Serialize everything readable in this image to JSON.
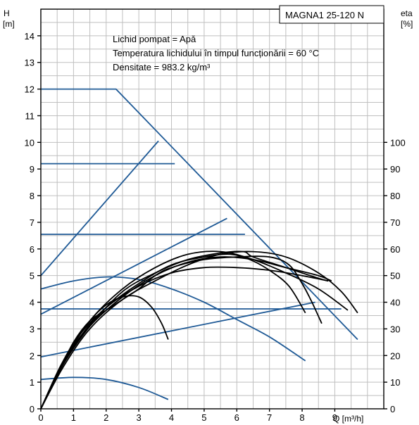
{
  "chart_data": {
    "type": "line",
    "model_label": "MAGNA1 25-120 N",
    "notes": [
      "Lichid pompat = Apă",
      "Temperatura lichidului în timpul funcționării = 60 °C",
      "Densitate = 983.2 kg/m³"
    ],
    "left_axis": {
      "label_line1": "H",
      "label_line2": "[m]",
      "range": [
        0,
        15
      ],
      "ticks": [
        0,
        1,
        2,
        3,
        4,
        5,
        6,
        7,
        8,
        9,
        10,
        11,
        12,
        13,
        14
      ]
    },
    "right_axis": {
      "label_line1": "eta",
      "label_line2": "[%]",
      "range": [
        0,
        150
      ],
      "ticks": [
        0,
        10,
        20,
        30,
        40,
        50,
        60,
        70,
        80,
        90,
        100
      ]
    },
    "x_axis": {
      "label": "Q [m³/h]",
      "range": [
        0,
        10.5
      ],
      "ticks": [
        0,
        1,
        2,
        3,
        4,
        5,
        6,
        7,
        8,
        9
      ]
    },
    "grid": true,
    "colors": {
      "head": "#1f5a96",
      "eta": "#000000",
      "grid": "#bfbfbf"
    },
    "head_series": [
      {
        "points": [
          [
            0,
            12
          ],
          [
            2.3,
            12
          ],
          [
            9.7,
            2.6
          ]
        ]
      },
      {
        "points": [
          [
            0,
            9.2
          ],
          [
            4.1,
            9.2
          ]
        ]
      },
      {
        "points": [
          [
            0,
            6.55
          ],
          [
            6.25,
            6.55
          ]
        ]
      },
      {
        "points": [
          [
            0,
            3.75
          ],
          [
            9.2,
            3.75
          ]
        ]
      },
      {
        "points": [
          [
            0,
            5
          ],
          [
            3.6,
            10.05
          ]
        ]
      },
      {
        "points": [
          [
            0,
            3.55
          ],
          [
            5.7,
            7.15
          ]
        ]
      },
      {
        "points": [
          [
            0,
            1.95
          ],
          [
            8.4,
            4.0
          ]
        ]
      },
      {
        "points": [
          [
            0,
            4.5
          ],
          [
            1,
            4.8
          ],
          [
            2,
            4.95
          ],
          [
            3,
            4.85
          ],
          [
            4,
            4.5
          ],
          [
            5,
            4.0
          ],
          [
            6,
            3.35
          ],
          [
            7,
            2.7
          ],
          [
            8.1,
            1.8
          ]
        ]
      },
      {
        "points": [
          [
            0,
            1.1
          ],
          [
            1,
            1.18
          ],
          [
            2,
            1.1
          ],
          [
            3,
            0.8
          ],
          [
            3.9,
            0.35
          ]
        ]
      }
    ],
    "eta_series": [
      {
        "points": [
          [
            0,
            0
          ],
          [
            0.5,
            13
          ],
          [
            1,
            24
          ],
          [
            1.5,
            33
          ],
          [
            2,
            39
          ],
          [
            2.5,
            42
          ],
          [
            3,
            42
          ],
          [
            3.4,
            38
          ],
          [
            3.7,
            32
          ],
          [
            3.9,
            26
          ]
        ]
      },
      {
        "points": [
          [
            0,
            0
          ],
          [
            0.6,
            15
          ],
          [
            1,
            25
          ],
          [
            1.5,
            33
          ],
          [
            2,
            37
          ],
          [
            2.5,
            41
          ],
          [
            3,
            45
          ],
          [
            3.5,
            50
          ],
          [
            4,
            53
          ],
          [
            5,
            56
          ],
          [
            6,
            57
          ],
          [
            7,
            57
          ],
          [
            7.6,
            54
          ],
          [
            8,
            47
          ],
          [
            8.3,
            40
          ],
          [
            8.6,
            32
          ]
        ]
      },
      {
        "points": [
          [
            0,
            0
          ],
          [
            0.6,
            16
          ],
          [
            1.2,
            28
          ],
          [
            2,
            38
          ],
          [
            3,
            47
          ],
          [
            4,
            54
          ],
          [
            5,
            57
          ],
          [
            5.8,
            58
          ],
          [
            6.4,
            56
          ],
          [
            7,
            52
          ],
          [
            7.6,
            46
          ],
          [
            8.1,
            36
          ]
        ]
      },
      {
        "points": [
          [
            0,
            0
          ],
          [
            0.6,
            15
          ],
          [
            1.2,
            27
          ],
          [
            2,
            38
          ],
          [
            3,
            46
          ],
          [
            4,
            51
          ],
          [
            5,
            53
          ],
          [
            6,
            53
          ],
          [
            7,
            52
          ],
          [
            8,
            50
          ],
          [
            8.8,
            48
          ]
        ]
      },
      {
        "points": [
          [
            0,
            0
          ],
          [
            0.7,
            16
          ],
          [
            1.5,
            30
          ],
          [
            2.5,
            41
          ],
          [
            3.5,
            48
          ],
          [
            4.5,
            54
          ],
          [
            5.5,
            58
          ],
          [
            6.5,
            59
          ],
          [
            7.5,
            57
          ],
          [
            8.5,
            51
          ],
          [
            9.2,
            44
          ],
          [
            9.7,
            36
          ]
        ]
      },
      {
        "points": [
          [
            0,
            0
          ],
          [
            0.7,
            17
          ],
          [
            1.5,
            31
          ],
          [
            2.5,
            44
          ],
          [
            3.5,
            51
          ],
          [
            4.5,
            56
          ],
          [
            5.5,
            58.5
          ],
          [
            6.2,
            59
          ],
          [
            6.5,
            57
          ],
          [
            7.5,
            53
          ],
          [
            8.5,
            49
          ],
          [
            8.8,
            48
          ]
        ]
      },
      {
        "points": [
          [
            0,
            0
          ],
          [
            0.7,
            17
          ],
          [
            1.5,
            31
          ],
          [
            2.5,
            42
          ],
          [
            3.5,
            50
          ],
          [
            4.5,
            55
          ],
          [
            5.5,
            57
          ],
          [
            6.5,
            56
          ],
          [
            7.5,
            53
          ],
          [
            8.5,
            50
          ],
          [
            8.9,
            48
          ]
        ]
      },
      {
        "points": [
          [
            0,
            0
          ],
          [
            0.7,
            18
          ],
          [
            1.5,
            33
          ],
          [
            2.5,
            45
          ],
          [
            3.5,
            53
          ],
          [
            4.5,
            58
          ],
          [
            5.5,
            59
          ],
          [
            6.5,
            56
          ],
          [
            7.5,
            51
          ],
          [
            8.5,
            45
          ],
          [
            9.4,
            37
          ]
        ]
      }
    ]
  }
}
